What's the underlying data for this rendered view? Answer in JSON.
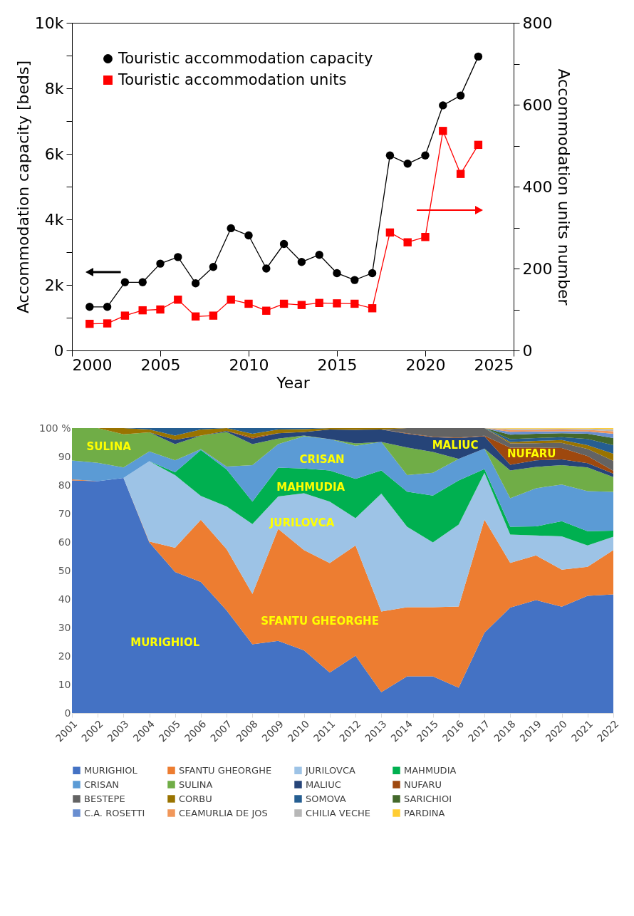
{
  "chart_data": [
    {
      "type": "line",
      "xlabel": "Year",
      "ylabel": "Accommodation capacity [beds]",
      "y2label": "Accommodation units number",
      "legend": "top left",
      "x": [
        2001,
        2002,
        2003,
        2004,
        2005,
        2006,
        2007,
        2008,
        2009,
        2010,
        2011,
        2012,
        2013,
        2014,
        2015,
        2016,
        2017,
        2018,
        2019,
        2020,
        2021,
        2022,
        2023
      ],
      "xlim": [
        2000,
        2025
      ],
      "xticks": [
        2000,
        2005,
        2010,
        2015,
        2020,
        2025
      ],
      "ylim": [
        0,
        10000
      ],
      "yticks": [
        0,
        {
          "value": 1000,
          "label": null
        },
        {
          "value": 2000,
          "label": "2k"
        },
        {
          "value": 3000,
          "label": null
        },
        {
          "value": 4000,
          "label": "4k"
        },
        {
          "value": 5000,
          "label": null
        },
        {
          "value": 6000,
          "label": "6k"
        },
        {
          "value": 7000,
          "label": null
        },
        {
          "value": 8000,
          "label": "8k"
        },
        {
          "value": 9000,
          "label": null
        },
        {
          "value": 10000,
          "label": "10k"
        }
      ],
      "y2lim": [
        0,
        800
      ],
      "y2ticks": [
        0,
        {
          "value": 100,
          "label": null
        },
        200,
        {
          "value": 300,
          "label": null
        },
        400,
        {
          "value": 500,
          "label": null
        },
        600,
        {
          "value": 700,
          "label": null
        },
        800
      ],
      "series": [
        {
          "name": "Touristic accommodation capacity",
          "color": "#000000",
          "marker": "circle",
          "values": [
            1330,
            1330,
            2080,
            2080,
            2650,
            2850,
            2050,
            2550,
            3730,
            3510,
            2500,
            3250,
            2700,
            2920,
            2360,
            2150,
            2360,
            5950,
            5700,
            5950,
            7480,
            7780,
            8970
          ]
        },
        {
          "name": "Touristic accommodation units",
          "color": "#ff0000",
          "marker": "square",
          "axis": "y2",
          "values": [
            65,
            66,
            85,
            98,
            100,
            124,
            83,
            85,
            124,
            114,
            97,
            114,
            111,
            116,
            115,
            114,
            103,
            288,
            264,
            277,
            536,
            431,
            502
          ]
        }
      ]
    },
    {
      "type": "area",
      "stacked": true,
      "legend": "bottom",
      "categories": [
        "2001",
        "2002",
        "2003",
        "2004",
        "2005",
        "2006",
        "2007",
        "2008",
        "2009",
        "2010",
        "2011",
        "2012",
        "2013",
        "2014",
        "2015",
        "2016",
        "2017",
        "2018",
        "2019",
        "2020",
        "2021",
        "2022"
      ],
      "ylim": [
        0,
        100
      ],
      "yticks": [
        0,
        10,
        20,
        30,
        40,
        50,
        60,
        70,
        80,
        90,
        {
          "value": 100,
          "label": "100 %"
        }
      ],
      "annotations": [
        "SULINA",
        "CRISAN",
        "MAHMUDIA",
        "JURILOVCA",
        "SFANTU GHEORGHE",
        "MURIGHIOL",
        "MALIUC",
        "NUFARU"
      ],
      "series": [
        {
          "name": "MURIGHIOL",
          "color": "#4472c4",
          "values": [
            81.6,
            81.4,
            82.5,
            59.9,
            49.5,
            46.0,
            36.0,
            24.1,
            25.3,
            22.0,
            14.2,
            20.1,
            7.3,
            12.9,
            12.9,
            8.9,
            28.2,
            37.0,
            39.6,
            37.3,
            41.1,
            41.6
          ]
        },
        {
          "name": "SFANTU GHEORGHE",
          "color": "#ed7d31",
          "values": [
            0.4,
            0,
            0,
            0.3,
            8.5,
            21.8,
            21.5,
            17.7,
            39.3,
            35.2,
            38.4,
            38.7,
            28.3,
            24.2,
            24.2,
            28.5,
            39.7,
            15.7,
            15.7,
            13.0,
            10.2,
            15.6
          ]
        },
        {
          "name": "JURILOVCA",
          "color": "#9dc3e6",
          "values": [
            0,
            0,
            0,
            28.2,
            25.5,
            8.4,
            15.0,
            24.5,
            11.4,
            19.9,
            21.6,
            9.6,
            41.4,
            28.3,
            22.8,
            28.7,
            16.4,
            9.9,
            7.0,
            11.7,
            7.5,
            4.7
          ]
        },
        {
          "name": "MAHMUDIA",
          "color": "#00b050",
          "values": [
            0,
            0,
            0,
            0,
            1.0,
            16.1,
            13.0,
            7.9,
            10.1,
            8.7,
            10.9,
            13.8,
            8.1,
            12.3,
            16.4,
            15.5,
            1.3,
            2.8,
            3.2,
            5.3,
            5.0,
            2.1
          ]
        },
        {
          "name": "CRISAN",
          "color": "#5b9bd5",
          "values": [
            6.6,
            6.4,
            3.7,
            3.4,
            4.2,
            0.3,
            1.0,
            12.8,
            8.3,
            11.3,
            11.0,
            11.6,
            10.0,
            5.8,
            8.0,
            7.6,
            7.2,
            10.0,
            13.4,
            12.9,
            14.1,
            13.6
          ]
        },
        {
          "name": "SULINA",
          "color": "#70ad47",
          "values": [
            11.4,
            12.2,
            11.6,
            6.7,
            5.7,
            4.8,
            12.1,
            7.4,
            1.9,
            0.3,
            0,
            0.8,
            0,
            9.7,
            7.3,
            0,
            0,
            9.7,
            7.5,
            6.8,
            8.3,
            5.2
          ]
        },
        {
          "name": "MALIUC",
          "color": "#264478",
          "values": [
            0,
            0,
            0,
            0,
            1.5,
            0,
            0.4,
            1.9,
            1.9,
            1.2,
            3.4,
            4.8,
            4.4,
            4.8,
            5.2,
            7.3,
            4.3,
            2.0,
            2.3,
            2.0,
            1.5,
            1.2
          ]
        },
        {
          "name": "NUFARU",
          "color": "#9e480e",
          "values": [
            0,
            0,
            0,
            0,
            0,
            0,
            0,
            0.5,
            0,
            0,
            0,
            0,
            0,
            0.2,
            0.2,
            0.2,
            0.2,
            6.0,
            4.5,
            4.0,
            2.5,
            1.0
          ]
        },
        {
          "name": "BESTEPE",
          "color": "#636363",
          "values": [
            0,
            0,
            0,
            0,
            0,
            0,
            0,
            0,
            0,
            0,
            0,
            0,
            0,
            1.8,
            3.0,
            3.3,
            2.7,
            1.5,
            1.5,
            1.8,
            2.5,
            3.5
          ]
        },
        {
          "name": "CORBU",
          "color": "#997300",
          "values": [
            0,
            0,
            2.2,
            1.0,
            1.5,
            2.1,
            1.0,
            1.2,
            1.3,
            1.0,
            0.5,
            0.6,
            0.5,
            0,
            0,
            0,
            0,
            0.5,
            0.8,
            1.0,
            1.3,
            2.5
          ]
        },
        {
          "name": "SOMOVA",
          "color": "#255e91",
          "values": [
            0,
            0,
            0,
            0.5,
            2.6,
            0.5,
            0,
            2.0,
            0.5,
            0.4,
            0,
            0,
            0,
            0,
            0,
            0,
            0,
            1.0,
            1.0,
            1.0,
            2.2,
            3.0
          ]
        },
        {
          "name": "SARICHIOI",
          "color": "#43682b",
          "values": [
            0,
            0,
            0,
            0,
            0,
            0,
            0,
            0,
            0,
            0,
            0,
            0,
            0,
            0,
            0,
            0,
            0,
            1.6,
            1.5,
            1.4,
            1.8,
            2.5
          ]
        },
        {
          "name": "C.A. ROSETTI",
          "color": "#698ed0",
          "values": [
            0,
            0,
            0,
            0,
            0,
            0,
            0,
            0,
            0,
            0,
            0,
            0,
            0,
            0,
            0,
            0,
            0,
            1.0,
            0.8,
            0.7,
            0.8,
            1.5
          ]
        },
        {
          "name": "CEAMURLIA DE JOS",
          "color": "#f1975a",
          "values": [
            0,
            0,
            0,
            0,
            0,
            0,
            0,
            0,
            0,
            0,
            0,
            0,
            0,
            0,
            0,
            0,
            0,
            0.7,
            0.6,
            0.6,
            0.6,
            0.9
          ]
        },
        {
          "name": "CHILIA VECHE",
          "color": "#b7b7b7",
          "values": [
            0,
            0,
            0,
            0,
            0,
            0,
            0,
            0,
            0,
            0,
            0,
            0,
            0,
            0,
            0,
            0,
            0,
            0.4,
            0.4,
            0.3,
            0.4,
            0.7
          ]
        },
        {
          "name": "PARDINA",
          "color": "#ffcd33",
          "values": [
            0,
            0,
            0,
            0,
            0,
            0,
            0,
            0,
            0,
            0,
            0,
            0,
            0,
            0,
            0,
            0,
            0,
            0.2,
            0.2,
            0.2,
            0.2,
            0.4
          ]
        }
      ]
    }
  ]
}
